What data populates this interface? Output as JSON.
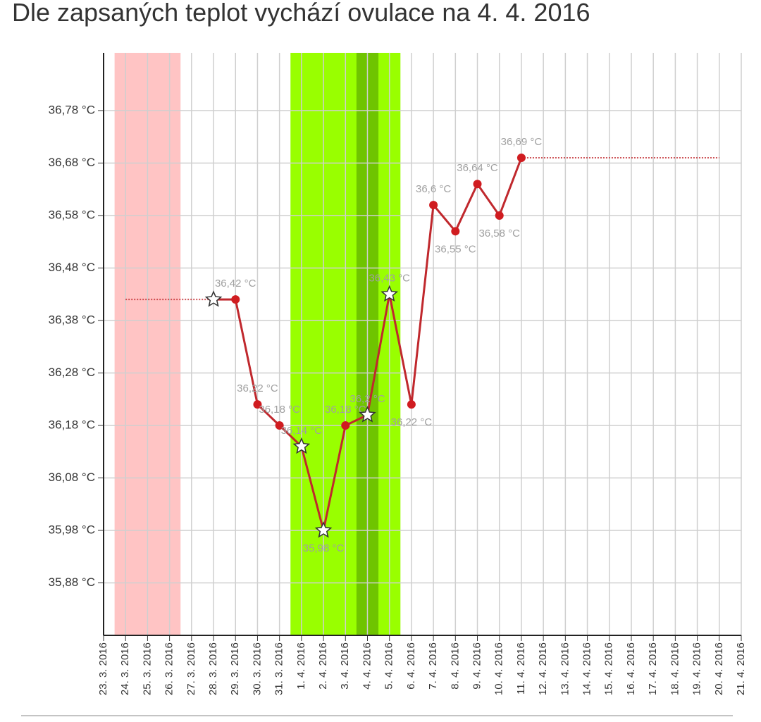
{
  "chart_data": {
    "type": "line",
    "title": "Dle zapsaných teplot vychází ovulace na 4. 4. 2016",
    "categories": [
      "23. 3. 2016",
      "24. 3. 2016",
      "25. 3. 2016",
      "26. 3. 2016",
      "27. 3. 2016",
      "28. 3. 2016",
      "29. 3. 2016",
      "30. 3. 2016",
      "31. 3. 2016",
      "1. 4. 2016",
      "2. 4. 2016",
      "3. 4. 2016",
      "4. 4. 2016",
      "5. 4. 2016",
      "6. 4. 2016",
      "7. 4. 2016",
      "8. 4. 2016",
      "9. 4. 2016",
      "10. 4. 2016",
      "11. 4. 2016",
      "12. 4. 2016",
      "13. 4. 2016",
      "14. 4. 2016",
      "15. 4. 2016",
      "16. 4. 2016",
      "17. 4. 2016",
      "18. 4. 2016",
      "19. 4. 2016",
      "20. 4. 2016",
      "21. 4. 2016"
    ],
    "values": [
      null,
      null,
      null,
      null,
      null,
      36.42,
      36.42,
      36.22,
      36.18,
      36.14,
      35.98,
      36.18,
      36.2,
      36.43,
      36.22,
      36.6,
      36.55,
      36.64,
      36.58,
      36.69,
      null,
      null,
      null,
      null,
      null,
      null,
      null,
      null,
      null,
      null
    ],
    "value_labels": [
      null,
      null,
      null,
      null,
      null,
      null,
      "36,42 °C",
      "36,22 °C",
      "36,18 °C",
      "36,14 °C",
      "35,98 °C",
      "36,18 °C",
      "36,2 °C",
      "36,43 °C",
      "36,22 °C",
      "36,6 °C",
      "36,55 °C",
      "36,64 °C",
      "36,58 °C",
      "36,69 °C",
      null,
      null,
      null,
      null,
      null,
      null,
      null,
      null,
      null,
      null
    ],
    "markers": [
      null,
      null,
      null,
      null,
      null,
      "star",
      "circle",
      "circle",
      "circle",
      "star",
      "star",
      "circle",
      "star",
      "star",
      "circle",
      "circle",
      "circle",
      "circle",
      "circle",
      "circle",
      null,
      null,
      null,
      null,
      null,
      null,
      null,
      null,
      null,
      null
    ],
    "color": "#c0282d",
    "lines": [
      {
        "style": "dotted",
        "color": "#c0282d",
        "values": [
          null,
          36.42,
          36.42,
          36.42,
          36.42,
          36.42,
          null,
          null,
          null,
          null,
          null,
          null,
          null,
          null,
          null,
          null,
          null,
          null,
          null,
          null,
          null,
          null,
          null,
          null,
          null,
          null,
          null,
          null,
          null,
          null
        ]
      },
      {
        "style": "dotted",
        "color": "#c0282d",
        "values": [
          null,
          null,
          null,
          null,
          null,
          null,
          null,
          null,
          null,
          null,
          null,
          null,
          null,
          null,
          null,
          null,
          null,
          null,
          null,
          36.69,
          36.69,
          36.69,
          36.69,
          36.69,
          36.69,
          36.69,
          36.69,
          36.69,
          36.69,
          null
        ]
      }
    ],
    "bands": [
      {
        "from": "24. 3. 2016",
        "to": "26. 3. 2016",
        "color": "#ffc4c4"
      },
      {
        "from": "1. 4. 2016",
        "to": "5. 4. 2016",
        "color": "#99ff00"
      },
      {
        "from": "4. 4. 2016",
        "to": "4. 4. 2016",
        "color": "#6fc400"
      }
    ],
    "ylim": [
      35.78,
      36.89
    ],
    "yticks": [
      {
        "value": 35.88,
        "label": "35,88 °C"
      },
      {
        "value": 35.98,
        "label": "35,98 °C"
      },
      {
        "value": 36.08,
        "label": "36,08 °C"
      },
      {
        "value": 36.18,
        "label": "36,18 °C"
      },
      {
        "value": 36.28,
        "label": "36,28 °C"
      },
      {
        "value": 36.38,
        "label": "36,38 °C"
      },
      {
        "value": 36.48,
        "label": "36,48 °C"
      },
      {
        "value": 36.58,
        "label": "36,58 °C"
      },
      {
        "value": 36.68,
        "label": "36,68 °C"
      },
      {
        "value": 36.78,
        "label": "36,78 °C"
      }
    ],
    "grid": true
  }
}
